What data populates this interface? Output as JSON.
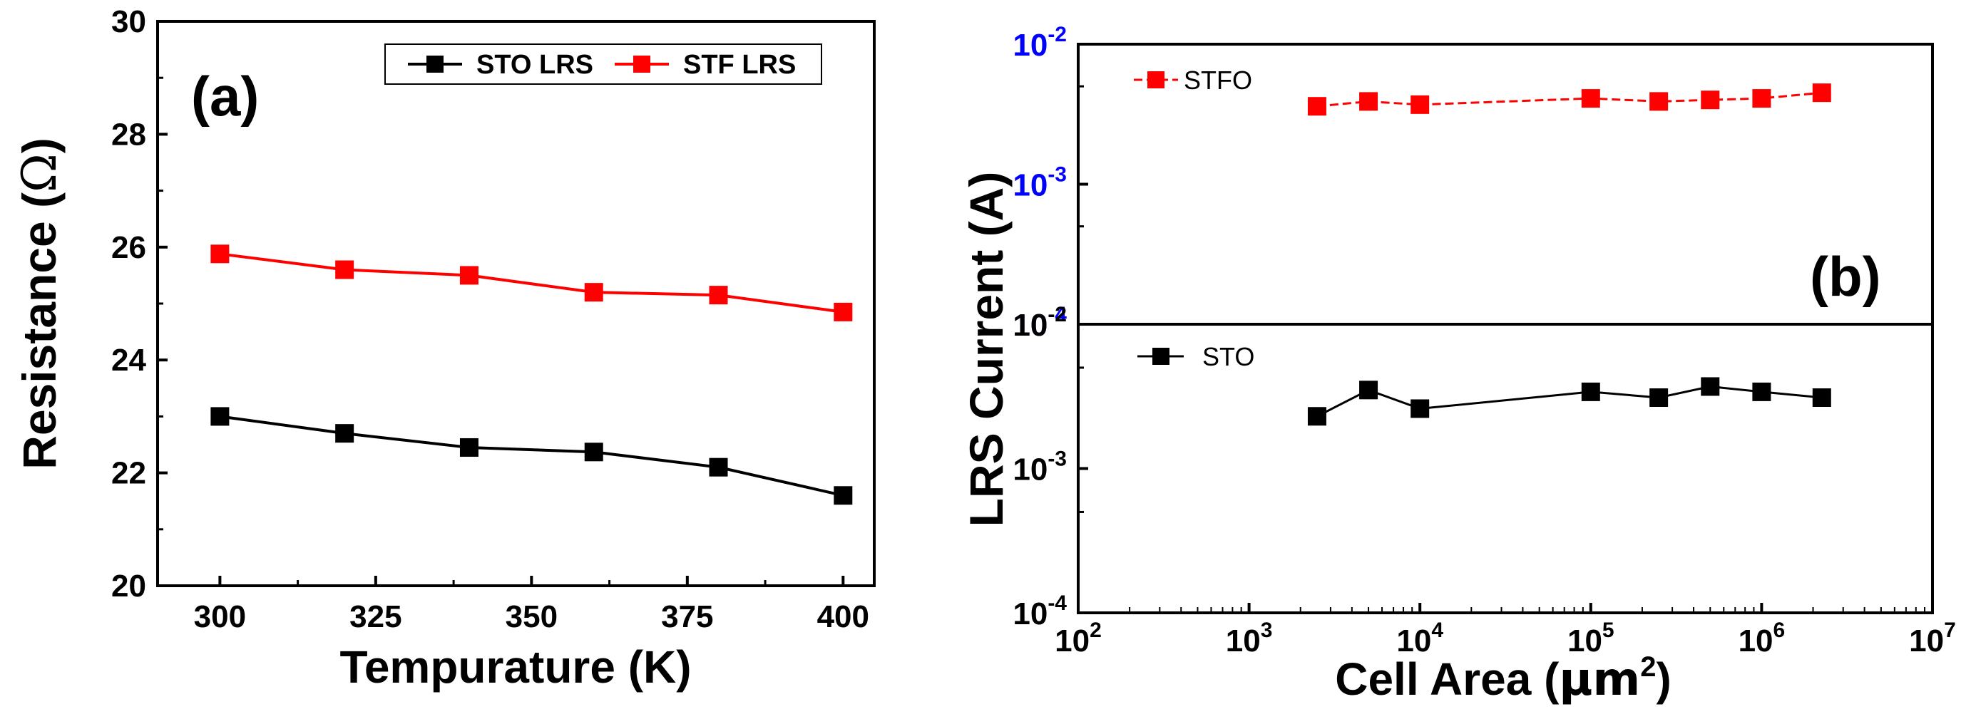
{
  "chart_data": [
    {
      "type": "line",
      "panel_label": "(a)",
      "xlabel": "Tempurature (K)",
      "ylabel_main": "Resistance (",
      "ylabel_unit": "Ω",
      "ylabel_close": ")",
      "xlim": [
        290,
        405
      ],
      "ylim": [
        20,
        30
      ],
      "x_ticks": [
        300,
        325,
        350,
        375,
        400
      ],
      "y_ticks": [
        20,
        22,
        24,
        26,
        28,
        30
      ],
      "legend": "top-right",
      "series": [
        {
          "name": "STO LRS",
          "color": "#000000",
          "x": [
            300,
            320,
            340,
            360,
            380,
            400
          ],
          "y": [
            23.0,
            22.7,
            22.45,
            22.37,
            22.1,
            21.6
          ]
        },
        {
          "name": "STF LRS",
          "color": "#ff0000",
          "x": [
            300,
            320,
            340,
            360,
            380,
            400
          ],
          "y": [
            25.88,
            25.6,
            25.5,
            25.2,
            25.15,
            24.85
          ]
        }
      ]
    },
    {
      "type": "line",
      "panel_label": "(b)",
      "xscale": "log",
      "yscale": "log",
      "xlabel_main": "Cell Area (",
      "xlabel_unit": "μm",
      "xlabel_sup": "2",
      "xlabel_close": ")",
      "ylabel": "LRS Current (A)",
      "xlim": [
        100,
        10000000
      ],
      "x_ticks": [
        {
          "base": "10",
          "exp": "2"
        },
        {
          "base": "10",
          "exp": "3"
        },
        {
          "base": "10",
          "exp": "4"
        },
        {
          "base": "10",
          "exp": "5"
        },
        {
          "base": "10",
          "exp": "6"
        },
        {
          "base": "10",
          "exp": "7"
        }
      ],
      "top_y_ticks": [
        {
          "base": "10",
          "exp": "-2",
          "color": "#0000ff"
        },
        {
          "base": "10",
          "exp": "-3",
          "color": "#0000ff"
        },
        {
          "base": "10",
          "exp": "-4",
          "color": "#0000ff"
        }
      ],
      "bottom_y_ticks": [
        {
          "base": "10",
          "exp": "-2",
          "color": "#000000"
        },
        {
          "base": "10",
          "exp": "-3",
          "color": "#000000"
        },
        {
          "base": "10",
          "exp": "-4",
          "color": "#000000"
        }
      ],
      "ylim_top": [
        0.0001,
        0.01
      ],
      "ylim_bottom": [
        0.0001,
        0.01
      ],
      "series": [
        {
          "name": "STFO",
          "color": "#ff0000",
          "subpanel": "top",
          "line_style": "dashed",
          "x": [
            2500,
            5000,
            10000,
            100000,
            250000,
            500000,
            1000000,
            2250000
          ],
          "y": [
            0.0036,
            0.0039,
            0.0037,
            0.0041,
            0.0039,
            0.004,
            0.0041,
            0.0045
          ]
        },
        {
          "name": "STO",
          "color": "#000000",
          "subpanel": "bottom",
          "line_style": "solid",
          "x": [
            2500,
            5000,
            10000,
            100000,
            250000,
            500000,
            1000000,
            2250000
          ],
          "y": [
            0.0023,
            0.0035,
            0.0026,
            0.0034,
            0.0031,
            0.0037,
            0.0034,
            0.0031
          ]
        }
      ]
    }
  ]
}
